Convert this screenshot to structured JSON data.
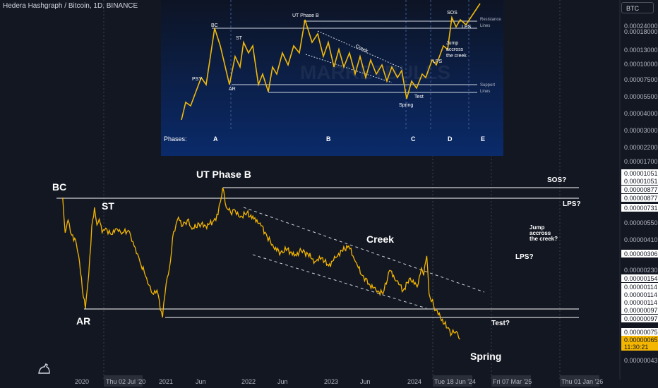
{
  "header": {
    "title": "Hedera Hashgraph / Bitcoin, 1D, BINANCE"
  },
  "currency_button": "BTC",
  "inset": {
    "labels": {
      "bc": "BC",
      "psy": "PSY",
      "st": "ST",
      "ar": "AR",
      "ut": "UT Phase B",
      "creek": "Creek",
      "sos": "SOS",
      "lps": "LPS",
      "lps2": "LPS",
      "jump": [
        "Jump",
        "accross",
        "the creek"
      ],
      "spring": "Spring",
      "test": "Test",
      "resistance": [
        "Resistance",
        "Lines"
      ],
      "support": [
        "Support",
        "Lines"
      ],
      "phases": "Phases:"
    },
    "phase_letters": [
      "A",
      "B",
      "C",
      "D",
      "E"
    ],
    "watermark": "MARKETBULLS"
  },
  "annotations": {
    "bc": "BC",
    "st": "ST",
    "ar": "AR",
    "ut": "UT Phase B",
    "creek": "Creek",
    "spring": "Spring",
    "test": "Test?",
    "sos": "SOS?",
    "lps_top": "LPS?",
    "lps_mid": "LPS?",
    "jump": [
      "Jump",
      "accross",
      "the creek?"
    ]
  },
  "chart_data": {
    "type": "line",
    "title": "Hedera Hashgraph / Bitcoin, 1D, BINANCE",
    "x_ticks": [
      "2020",
      "Thu 02 Jul '20",
      "2021",
      "Jun",
      "2022",
      "Jun",
      "2023",
      "Jun",
      "2024",
      "Tue 18 Jun '24",
      "Fri 07 Mar '25",
      "Thu 01 Jan '26"
    ],
    "y_ticks": [
      "0.00024000",
      "0.00018000",
      "0.00013000",
      "0.00010000",
      "0.00007500",
      "0.00005500",
      "0.00004000",
      "0.00003000",
      "0.00002200",
      "0.00001700",
      "0.00000550",
      "0.00000410",
      "0.00000230",
      "0.00000043"
    ],
    "price_tags": [
      "0.00001051",
      "0.00001051",
      "0.00000877",
      "0.00000877",
      "0.00000731",
      "0.00000306",
      "0.00000154",
      "0.00000114",
      "0.00000114",
      "0.00000114",
      "0.00000097",
      "0.00000097",
      "0.00000075"
    ],
    "current_price": "0.00000065",
    "countdown": "11:30:21",
    "line_color": "#f5b600",
    "levels": {
      "resistance_top": "0.00001051",
      "resistance_bc": "0.00000877",
      "support_ar": "0.00000114",
      "support_spring": "0.00000097"
    },
    "series": [
      {
        "values": [
          [
            "2019-10-01",
            8.77e-06
          ],
          [
            "2019-10-12",
            4.6e-06
          ],
          [
            "2019-10-25",
            5.8e-06
          ],
          [
            "2019-11-10",
            4.4e-06
          ],
          [
            "2019-11-28",
            4e-06
          ],
          [
            "2019-12-15",
            2.7e-06
          ],
          [
            "2019-12-28",
            1.6e-06
          ],
          [
            "2020-01-10",
            1.14e-06
          ],
          [
            "2020-01-25",
            2.1e-06
          ],
          [
            "2020-02-08",
            5.2e-06
          ],
          [
            "2020-02-20",
            7.3e-06
          ],
          [
            "2020-03-02",
            5.3e-06
          ],
          [
            "2020-03-12",
            5.9e-06
          ],
          [
            "2020-03-25",
            4.6e-06
          ],
          [
            "2020-04-10",
            5e-06
          ],
          [
            "2020-05-01",
            4.5e-06
          ],
          [
            "2020-06-01",
            4.9e-06
          ],
          [
            "2020-06-25",
            4.6e-06
          ],
          [
            "2020-07-20",
            4.8e-06
          ],
          [
            "2020-08-15",
            3.6e-06
          ],
          [
            "2020-09-10",
            2.7e-06
          ],
          [
            "2020-10-10",
            2e-06
          ],
          [
            "2020-11-05",
            1.5e-06
          ],
          [
            "2020-11-25",
            1.6e-06
          ],
          [
            "2020-12-20",
            9.7e-07
          ],
          [
            "2021-01-05",
            1.8e-06
          ],
          [
            "2021-01-20",
            2.4e-06
          ],
          [
            "2021-02-08",
            4.7e-06
          ],
          [
            "2021-03-01",
            6.1e-06
          ],
          [
            "2021-03-20",
            5.2e-06
          ],
          [
            "2021-04-10",
            5.8e-06
          ],
          [
            "2021-05-01",
            4.9e-06
          ],
          [
            "2021-06-01",
            5.4e-06
          ],
          [
            "2021-07-01",
            5.2e-06
          ],
          [
            "2021-08-01",
            5.6e-06
          ],
          [
            "2021-08-25",
            6.4e-06
          ],
          [
            "2021-09-15",
            1.051e-05
          ],
          [
            "2021-10-01",
            7.3e-06
          ],
          [
            "2021-10-20",
            6.7e-06
          ],
          [
            "2021-11-10",
            6.9e-06
          ],
          [
            "2021-12-01",
            6.1e-06
          ],
          [
            "2022-01-01",
            6.6e-06
          ],
          [
            "2022-02-01",
            5.9e-06
          ],
          [
            "2022-03-01",
            5.5e-06
          ],
          [
            "2022-04-01",
            4.3e-06
          ],
          [
            "2022-05-01",
            3.5e-06
          ],
          [
            "2022-06-01",
            3.2e-06
          ],
          [
            "2022-07-01",
            3.4e-06
          ],
          [
            "2022-08-01",
            3e-06
          ],
          [
            "2022-09-01",
            3.3e-06
          ],
          [
            "2022-10-01",
            3.1e-06
          ],
          [
            "2022-11-01",
            2.7e-06
          ],
          [
            "2022-12-01",
            2.9e-06
          ],
          [
            "2023-01-01",
            2.5e-06
          ],
          [
            "2023-02-01",
            2.9e-06
          ],
          [
            "2023-03-01",
            3.3e-06
          ],
          [
            "2023-04-01",
            3.6e-06
          ],
          [
            "2023-05-01",
            2.7e-06
          ],
          [
            "2023-06-01",
            2.1e-06
          ],
          [
            "2023-07-01",
            1.8e-06
          ],
          [
            "2023-08-01",
            1.6e-06
          ],
          [
            "2023-09-01",
            1.5e-06
          ],
          [
            "2023-10-01",
            2.3e-06
          ],
          [
            "2023-11-01",
            1.9e-06
          ],
          [
            "2023-12-01",
            1.6e-06
          ],
          [
            "2024-01-01",
            2e-06
          ],
          [
            "2024-02-01",
            1.7e-06
          ],
          [
            "2024-02-20",
            2.4e-06
          ],
          [
            "2024-03-01",
            2.1e-06
          ],
          [
            "2024-03-15",
            3e-06
          ],
          [
            "2024-03-25",
            1.5e-06
          ],
          [
            "2024-04-15",
            1.2e-06
          ],
          [
            "2024-05-15",
            9.7e-07
          ],
          [
            "2024-06-15",
            8e-07
          ],
          [
            "2024-07-05",
            7.2e-07
          ],
          [
            "2024-07-25",
            7.5e-07
          ],
          [
            "2024-08-10",
            6.5e-07
          ]
        ]
      }
    ]
  }
}
